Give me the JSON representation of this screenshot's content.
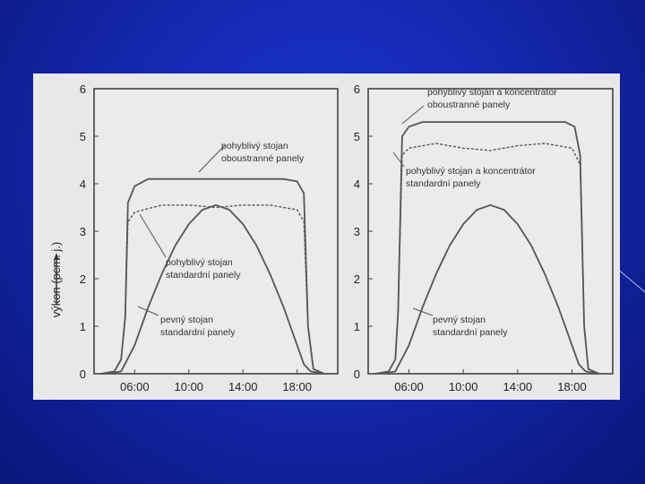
{
  "chart_data": [
    {
      "type": "line",
      "title": "",
      "xlabel": "",
      "ylabel": "výkon (pcm. j.)",
      "xlim": [
        3,
        21
      ],
      "ylim": [
        0,
        6
      ],
      "yticks": [
        "0",
        "1",
        "2",
        "3",
        "4",
        "5",
        "6"
      ],
      "xticks": [
        "06:00",
        "10:00",
        "14:00",
        "18:00"
      ],
      "xtick_values": [
        6,
        10,
        14,
        18
      ],
      "series": [
        {
          "name": "pohyblivý stojan oboustranné panely",
          "style": "solid",
          "x": [
            3.5,
            4.5,
            5.0,
            5.3,
            5.5,
            6.0,
            7.0,
            9.0,
            12.0,
            15.0,
            17.0,
            18.0,
            18.5,
            18.8,
            19.2,
            20.0
          ],
          "y": [
            0,
            0.05,
            0.3,
            1.2,
            3.6,
            3.95,
            4.1,
            4.1,
            4.1,
            4.1,
            4.1,
            4.05,
            3.8,
            1.0,
            0.1,
            0
          ]
        },
        {
          "name": "pohyblivý stojan standardní panely",
          "style": "dashed",
          "x": [
            3.5,
            4.5,
            5.0,
            5.3,
            5.5,
            6.0,
            8.0,
            10.0,
            12.0,
            14.0,
            16.0,
            18.0,
            18.5,
            18.8,
            19.2,
            20.0
          ],
          "y": [
            0,
            0.05,
            0.3,
            1.2,
            3.2,
            3.4,
            3.55,
            3.55,
            3.5,
            3.55,
            3.55,
            3.45,
            3.2,
            1.0,
            0.1,
            0
          ]
        },
        {
          "name": "pevný stojan standardní panely",
          "style": "solid",
          "x": [
            4.0,
            5.0,
            6.0,
            7.0,
            8.0,
            9.0,
            10.0,
            11.0,
            12.0,
            13.0,
            14.0,
            15.0,
            16.0,
            17.0,
            18.0,
            18.5,
            19.0,
            20.0
          ],
          "y": [
            0,
            0.05,
            0.6,
            1.4,
            2.1,
            2.7,
            3.15,
            3.45,
            3.55,
            3.45,
            3.15,
            2.7,
            2.1,
            1.4,
            0.6,
            0.2,
            0.05,
            0
          ]
        }
      ],
      "annotations": [
        {
          "lines": [
            "pohyblivý stojan",
            "oboustranné panely"
          ]
        },
        {
          "lines": [
            "pohyblivý stojan",
            "standardní panely"
          ]
        },
        {
          "lines": [
            "pevný stojan",
            "standardní panely"
          ]
        }
      ]
    },
    {
      "type": "line",
      "title": "",
      "xlabel": "",
      "ylabel": "",
      "xlim": [
        3,
        21
      ],
      "ylim": [
        0,
        6
      ],
      "yticks": [
        "0",
        "1",
        "2",
        "3",
        "4",
        "5",
        "6"
      ],
      "xticks": [
        "06:00",
        "10:00",
        "14:00",
        "18:00"
      ],
      "xtick_values": [
        6,
        10,
        14,
        18
      ],
      "series": [
        {
          "name": "pohyblivý stojan a koncentrátor oboustranné panely",
          "style": "solid",
          "x": [
            3.5,
            4.5,
            5.0,
            5.2,
            5.5,
            6.0,
            7.0,
            10.0,
            13.0,
            16.0,
            17.5,
            18.2,
            18.6,
            18.9,
            19.2,
            20.0
          ],
          "y": [
            0,
            0.05,
            0.3,
            1.3,
            5.0,
            5.2,
            5.3,
            5.3,
            5.3,
            5.3,
            5.3,
            5.2,
            4.6,
            1.0,
            0.1,
            0
          ]
        },
        {
          "name": "pohyblivý stojan a koncentrátor standardní panely",
          "style": "dashed",
          "x": [
            3.5,
            4.5,
            5.0,
            5.2,
            5.5,
            6.0,
            8.0,
            10.0,
            12.0,
            14.0,
            16.0,
            18.0,
            18.6,
            18.9,
            19.2,
            20.0
          ],
          "y": [
            0,
            0.05,
            0.3,
            1.3,
            4.6,
            4.75,
            4.85,
            4.75,
            4.7,
            4.8,
            4.85,
            4.75,
            4.4,
            1.0,
            0.1,
            0
          ]
        },
        {
          "name": "pevný stojan standardní panely",
          "style": "solid",
          "x": [
            4.0,
            5.0,
            6.0,
            7.0,
            8.0,
            9.0,
            10.0,
            11.0,
            12.0,
            13.0,
            14.0,
            15.0,
            16.0,
            17.0,
            18.0,
            18.5,
            19.0,
            20.0
          ],
          "y": [
            0,
            0.05,
            0.6,
            1.4,
            2.1,
            2.7,
            3.15,
            3.45,
            3.55,
            3.45,
            3.15,
            2.7,
            2.1,
            1.4,
            0.6,
            0.2,
            0.05,
            0
          ]
        }
      ],
      "annotations": [
        {
          "lines": [
            "pohyblivý stojan a koncentrátor",
            "oboustranné panely"
          ]
        },
        {
          "lines": [
            "pohyblivý stojan a koncentrátor",
            "standardní panely"
          ]
        },
        {
          "lines": [
            "pevný stojan",
            "standardní panely"
          ]
        }
      ]
    }
  ],
  "colors": {
    "background": "#1428b0",
    "figure": "#e8e8e8",
    "ink": "#555555"
  }
}
